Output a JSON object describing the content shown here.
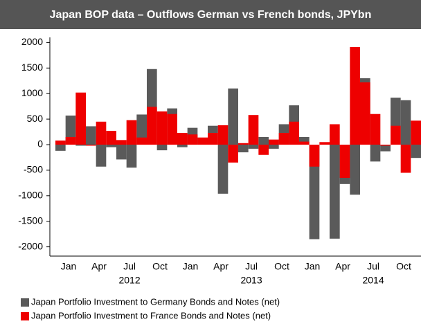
{
  "chart_data": {
    "type": "bar",
    "title": "Japan BOP data – Outflows German vs French bonds, JPYbn",
    "categories": [
      null,
      "Jan",
      null,
      null,
      "Apr",
      null,
      null,
      "Jul",
      null,
      null,
      "Oct",
      null,
      null,
      "Jan",
      null,
      null,
      "Apr",
      null,
      null,
      "Jul",
      null,
      null,
      "Oct",
      null,
      null,
      "Jan",
      null,
      null,
      "Apr",
      null,
      null,
      "Jul",
      null,
      null,
      "Oct",
      null
    ],
    "years": [
      "2012",
      "2013",
      "2014"
    ],
    "series": [
      {
        "name": "Japan Portfolio Investment to Germany Bonds and Notes (net)",
        "color": "#5a5a5a",
        "values": [
          -120,
          570,
          -20,
          360,
          -430,
          -50,
          -290,
          -450,
          590,
          1480,
          -110,
          710,
          -50,
          330,
          100,
          370,
          -960,
          1100,
          -150,
          -80,
          150,
          -80,
          400,
          770,
          150,
          -1850,
          0,
          -1840,
          -770,
          -980,
          1300,
          -330,
          -130,
          920,
          870,
          -260
        ]
      },
      {
        "name": "Japan Portfolio Investment to France Bonds and Notes (net)",
        "color": "#ee0000",
        "values": [
          80,
          150,
          1020,
          -20,
          450,
          270,
          90,
          480,
          140,
          740,
          650,
          600,
          230,
          200,
          140,
          230,
          380,
          -350,
          30,
          580,
          -200,
          100,
          230,
          450,
          60,
          -430,
          50,
          400,
          -650,
          1910,
          1220,
          600,
          -20,
          370,
          -550,
          470
        ]
      }
    ],
    "ylim": [
      -2100,
      2100
    ],
    "yticks": [
      -2000,
      -1500,
      -1000,
      -500,
      0,
      500,
      1000,
      1500,
      2000
    ]
  }
}
